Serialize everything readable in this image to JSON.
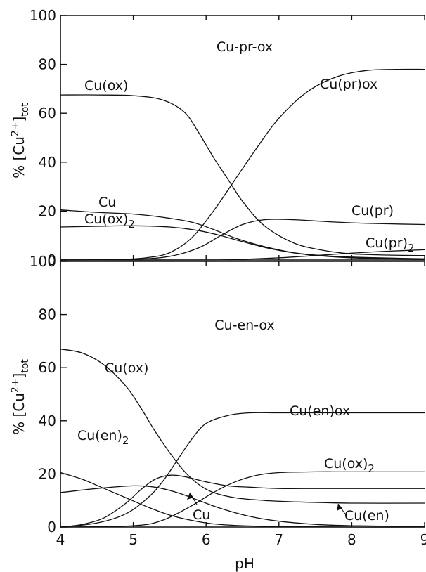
{
  "chart_data": [
    {
      "type": "line",
      "title": "Cu-pr-ox",
      "ylabel": "% [Cu2+]tot",
      "ylabel_parts": {
        "prefix": "% [Cu",
        "sup": "2+",
        "close": "]",
        "sub": "tot"
      },
      "xlabel": "",
      "xlim": [
        4,
        9
      ],
      "ylim": [
        0,
        100
      ],
      "yticks": [
        "0",
        "20",
        "40",
        "60",
        "80",
        "100"
      ],
      "series": [
        {
          "name": "Cu(ox)",
          "x": [
            4.0,
            4.5,
            5.0,
            5.4,
            5.7,
            5.9,
            6.1,
            6.3,
            6.5,
            6.8,
            7.2,
            7.6,
            8.0,
            8.5,
            9.0
          ],
          "y": [
            67.5,
            67.5,
            67.2,
            65.5,
            60.5,
            52,
            42,
            33,
            24,
            14,
            7,
            4,
            2.5,
            2,
            1.8
          ]
        },
        {
          "name": "Cu(pr)ox",
          "x": [
            4.0,
            4.8,
            5.2,
            5.5,
            5.8,
            6.1,
            6.4,
            6.7,
            7.0,
            7.4,
            7.8,
            8.2,
            8.6,
            9.0
          ],
          "y": [
            0,
            0.2,
            1,
            3,
            9,
            20,
            33,
            46,
            58,
            69,
            75,
            77.5,
            78,
            78
          ]
        },
        {
          "name": "Cu",
          "x": [
            4.0,
            4.5,
            5.0,
            5.4,
            5.8,
            6.1,
            6.4,
            6.8,
            7.2,
            7.6,
            8.0,
            8.5,
            9.0
          ],
          "y": [
            20.5,
            19.5,
            18.8,
            17.5,
            15.5,
            12.5,
            9,
            5.5,
            3,
            1.8,
            1.2,
            0.8,
            0.5
          ]
        },
        {
          "name": "Cu(ox)2",
          "x": [
            4.0,
            4.5,
            5.0,
            5.5,
            5.9,
            6.2,
            6.5,
            6.9,
            7.3,
            7.8,
            8.3,
            9.0
          ],
          "y": [
            13.5,
            13.8,
            14,
            13.5,
            12,
            10,
            7.5,
            4.5,
            2.5,
            1.2,
            0.6,
            0.3
          ]
        },
        {
          "name": "Cu(pr)",
          "x": [
            4.0,
            5.0,
            5.5,
            5.9,
            6.2,
            6.5,
            6.8,
            7.2,
            7.6,
            8.0,
            8.5,
            9.0
          ],
          "y": [
            0,
            0.3,
            1.5,
            5,
            10,
            14.5,
            16.5,
            16.5,
            15.8,
            15.2,
            14.8,
            14.5
          ]
        },
        {
          "name": "Cu(pr)2",
          "x": [
            4.0,
            6.0,
            6.5,
            7.0,
            7.5,
            8.0,
            8.5,
            9.0
          ],
          "y": [
            0,
            0,
            0.3,
            0.9,
            1.8,
            2.8,
            3.6,
            4.2
          ]
        }
      ]
    },
    {
      "type": "line",
      "title": "Cu-en-ox",
      "ylabel": "% [Cu2+]tot",
      "ylabel_parts": {
        "prefix": "% [Cu",
        "sup": "2+",
        "close": "]",
        "sub": "tot"
      },
      "xlabel": "pH",
      "xlim": [
        4,
        9
      ],
      "ylim": [
        0,
        100
      ],
      "xticks": [
        "4",
        "5",
        "6",
        "7",
        "8",
        "9"
      ],
      "yticks": [
        "0",
        "20",
        "40",
        "60",
        "80",
        "100"
      ],
      "series": [
        {
          "name": "Cu(ox)",
          "x": [
            4.0,
            4.3,
            4.6,
            4.9,
            5.1,
            5.3,
            5.5,
            5.7,
            5.9,
            6.1,
            6.4,
            6.8,
            7.2,
            8.0,
            9.0
          ],
          "y": [
            67,
            65.5,
            61,
            53,
            45,
            36,
            28,
            21,
            16,
            13,
            11,
            10,
            9.5,
            9,
            9
          ]
        },
        {
          "name": "Cu(en)ox",
          "x": [
            4.0,
            4.5,
            4.9,
            5.2,
            5.4,
            5.6,
            5.8,
            6.0,
            6.3,
            6.6,
            7.0,
            7.5,
            8.0,
            9.0
          ],
          "y": [
            0,
            1.5,
            5,
            11,
            17,
            25,
            33,
            39,
            42,
            43,
            43,
            43,
            43,
            43
          ]
        },
        {
          "name": "Cu(en)2",
          "x": [
            4.0,
            5.0,
            5.4,
            5.8,
            6.1,
            6.4,
            6.7,
            7.0,
            7.5,
            8.0,
            9.0
          ],
          "y": [
            0,
            0.5,
            2.5,
            8,
            13,
            17,
            19.5,
            20.5,
            20.8,
            20.8,
            20.8
          ]
        },
        {
          "name": "Cu",
          "x": [
            4.0,
            4.3,
            4.6,
            4.9,
            5.2,
            5.5,
            5.8,
            6.1,
            6.5,
            7.0,
            8.0,
            9.0
          ],
          "y": [
            20.5,
            18,
            14.5,
            11,
            7.5,
            4.5,
            2.5,
            1.2,
            0.5,
            0.2,
            0,
            0
          ]
        },
        {
          "name": "Cu(ox)2",
          "x": [
            4.0,
            4.5,
            5.0,
            5.3,
            5.6,
            5.9,
            6.2,
            6.6,
            7.0,
            7.5,
            8.0,
            9.0
          ],
          "y": [
            13,
            14.5,
            15.5,
            15,
            13,
            10,
            7,
            4,
            2.2,
            1,
            0.5,
            0.2
          ]
        },
        {
          "name": "Cu(en)",
          "x": [
            4.0,
            4.3,
            4.6,
            4.9,
            5.1,
            5.3,
            5.5,
            5.7,
            6.0,
            6.3,
            6.6,
            7.0,
            7.5,
            8.0,
            9.0
          ],
          "y": [
            0,
            1,
            3.5,
            9,
            14,
            18,
            19.5,
            19,
            17,
            15.5,
            15,
            14.5,
            14.5,
            14.5,
            14.5
          ]
        }
      ]
    }
  ]
}
